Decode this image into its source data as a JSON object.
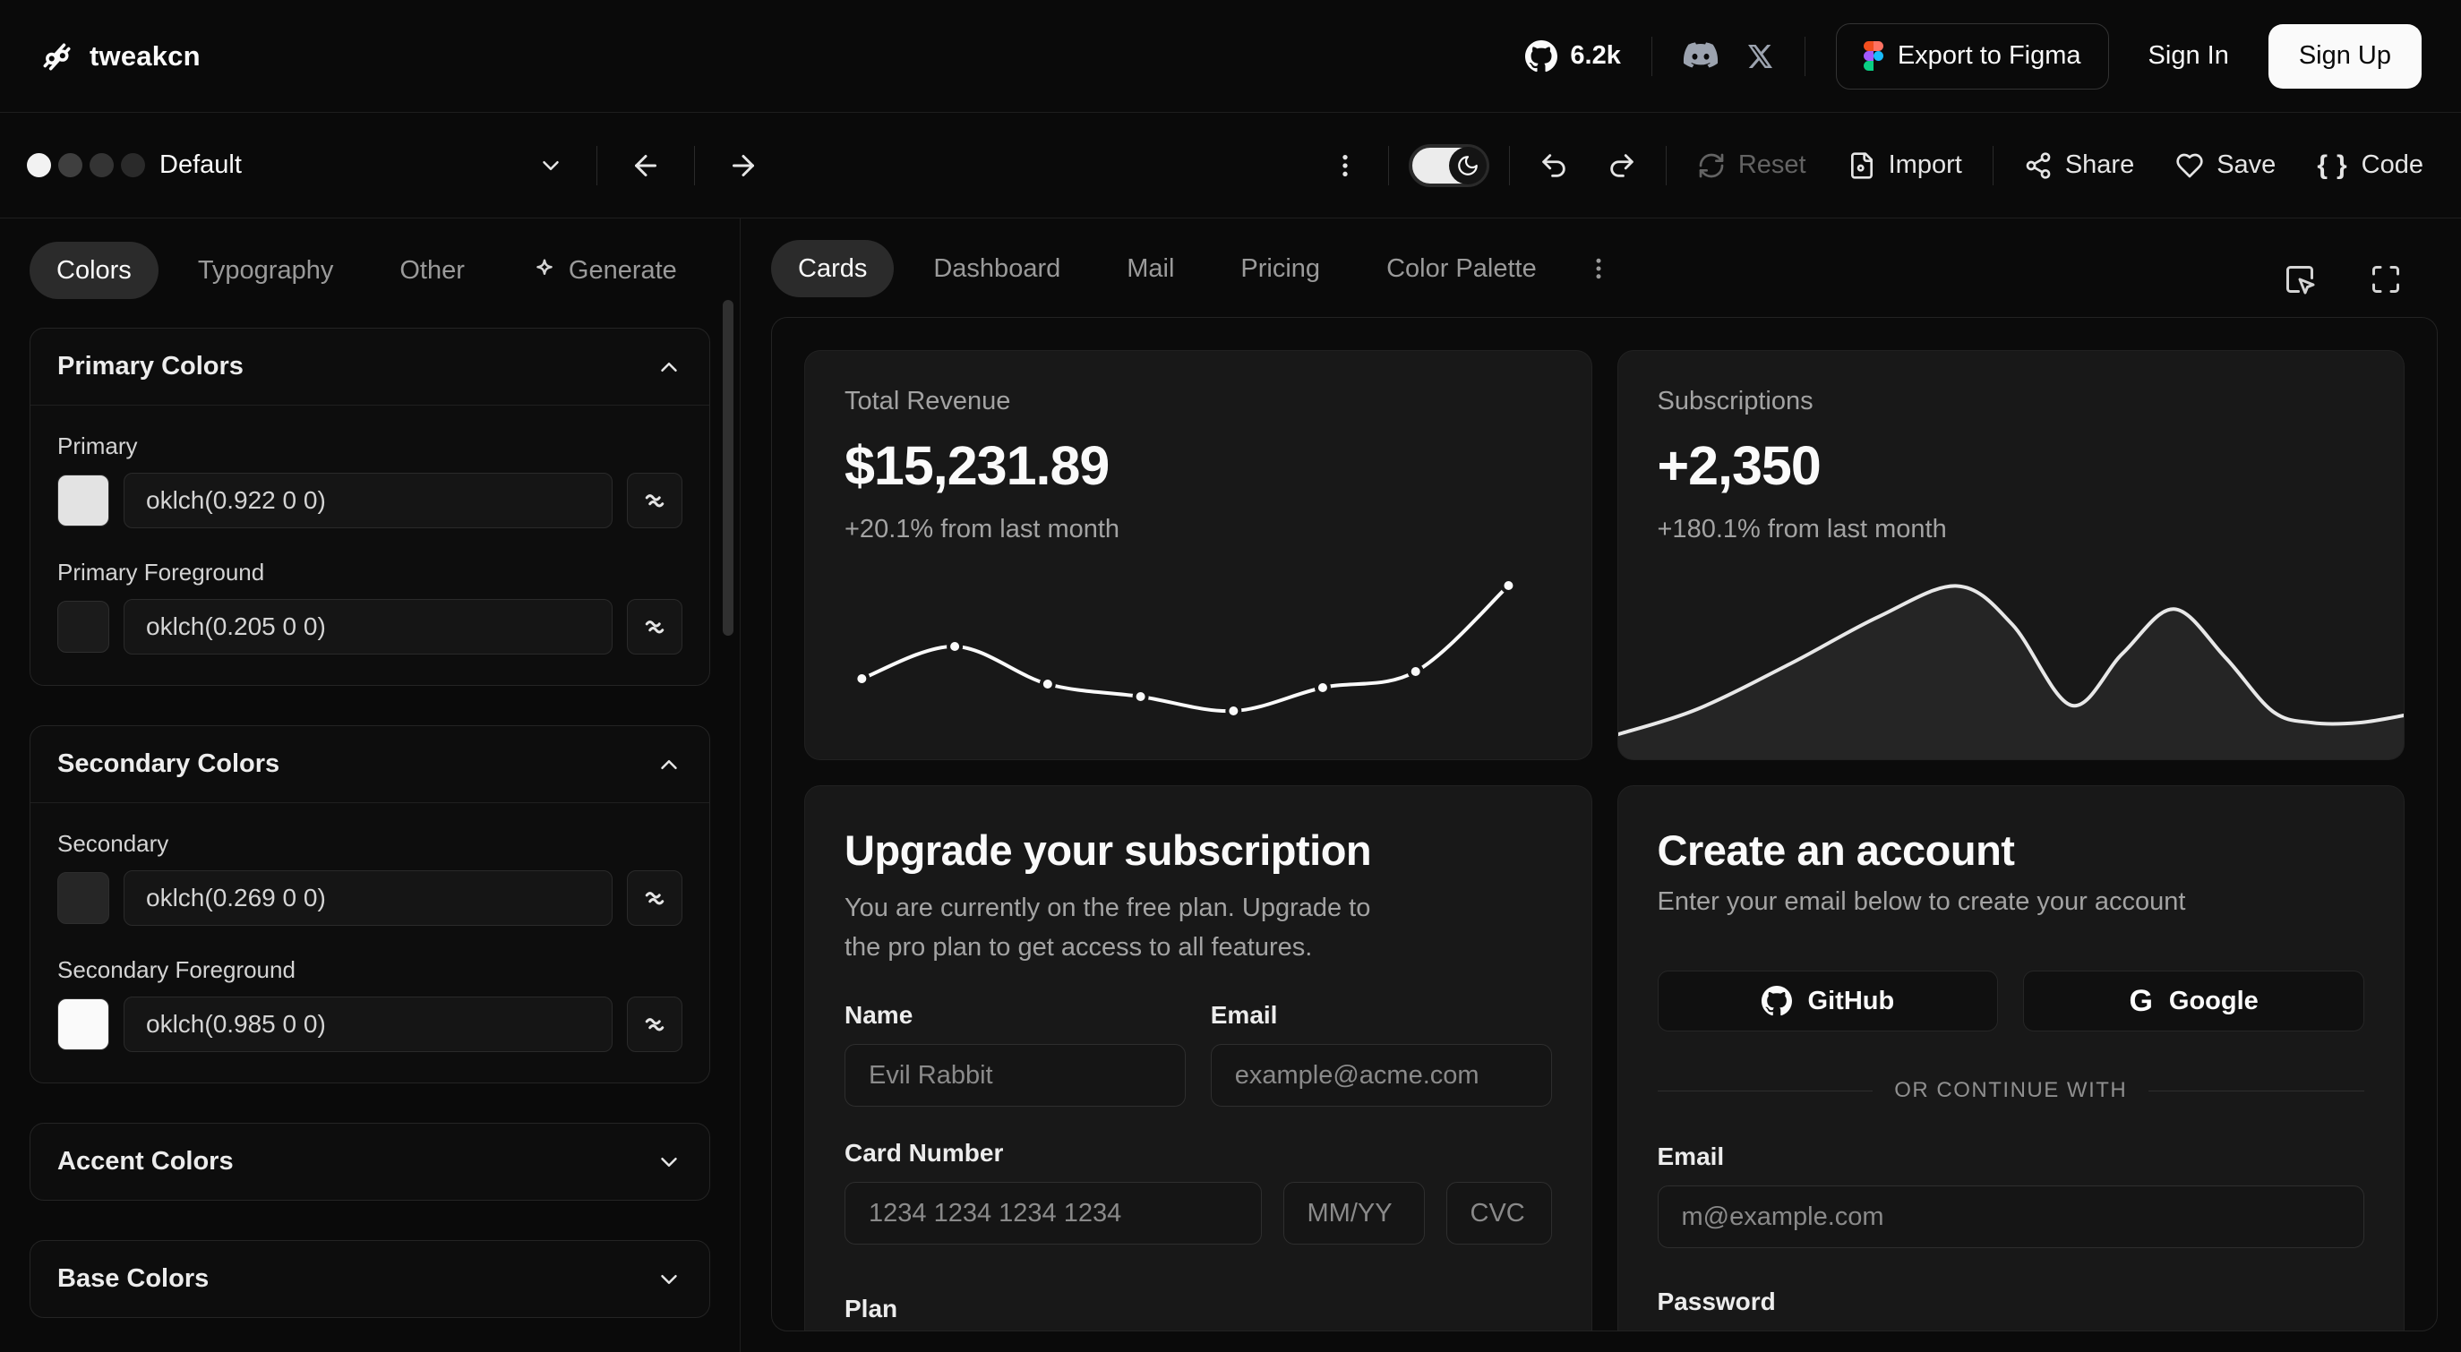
{
  "header": {
    "logo_text": "tweakcn",
    "github_stars": "6.2k",
    "export_figma_label": "Export to Figma",
    "sign_in_label": "Sign In",
    "sign_up_label": "Sign Up"
  },
  "toolbar": {
    "theme_name": "Default",
    "theme_dots": [
      "#f2f2f2",
      "#3f3f3f",
      "#343434",
      "#2a2a2a"
    ],
    "reset_label": "Reset",
    "import_label": "Import",
    "share_label": "Share",
    "save_label": "Save",
    "code_label": "Code"
  },
  "sidebar": {
    "tabs": [
      {
        "label": "Colors",
        "active": true
      },
      {
        "label": "Typography",
        "active": false
      },
      {
        "label": "Other",
        "active": false
      },
      {
        "label": "Generate",
        "active": false
      }
    ],
    "sections": [
      {
        "title": "Primary Colors",
        "expanded": true,
        "fields": [
          {
            "label": "Primary",
            "value": "oklch(0.922 0 0)",
            "swatch": "#e3e3e3"
          },
          {
            "label": "Primary Foreground",
            "value": "oklch(0.205 0 0)",
            "swatch": "#1b1b1b"
          }
        ]
      },
      {
        "title": "Secondary Colors",
        "expanded": true,
        "fields": [
          {
            "label": "Secondary",
            "value": "oklch(0.269 0 0)",
            "swatch": "#262626"
          },
          {
            "label": "Secondary Foreground",
            "value": "oklch(0.985 0 0)",
            "swatch": "#fafafa"
          }
        ]
      },
      {
        "title": "Accent Colors",
        "expanded": false
      },
      {
        "title": "Base Colors",
        "expanded": false
      }
    ]
  },
  "main": {
    "tabs": [
      "Cards",
      "Dashboard",
      "Mail",
      "Pricing",
      "Color Palette"
    ],
    "active_tab": "Cards",
    "cards": {
      "revenue": {
        "title": "Total Revenue",
        "value": "$15,231.89",
        "change": "+20.1% from last month"
      },
      "subscriptions": {
        "title": "Subscriptions",
        "value": "+2,350",
        "change": "+180.1% from last month"
      },
      "upgrade": {
        "title": "Upgrade your subscription",
        "description": "You are currently on the free plan. Upgrade to the pro plan to get access to all features.",
        "name_label": "Name",
        "name_placeholder": "Evil Rabbit",
        "email_label": "Email",
        "email_placeholder": "example@acme.com",
        "card_number_label": "Card Number",
        "card_number_placeholder": "1234 1234 1234 1234",
        "expiry_placeholder": "MM/YY",
        "cvc_placeholder": "CVC",
        "plan_label": "Plan"
      },
      "signup": {
        "title": "Create an account",
        "subtitle": "Enter your email below to create your account",
        "github_label": "GitHub",
        "google_label": "Google",
        "divider_label": "OR CONTINUE WITH",
        "email_label": "Email",
        "email_placeholder": "m@example.com",
        "password_label": "Password"
      }
    }
  },
  "colors": {
    "background": "#0a0a0a",
    "card": "#181818",
    "foreground": "#fafafa",
    "muted": "#a3a3a3",
    "figma_brand": [
      "#f24e1e",
      "#ff7262",
      "#a259ff",
      "#1abcfe",
      "#0acf83"
    ]
  },
  "chart_data": [
    {
      "id": "revenue-trend",
      "type": "line",
      "title": "Total Revenue trend (unlabeled sparkline, values estimated as normalized positions)",
      "points_norm": [
        [
          0.045,
          0.62
        ],
        [
          0.17,
          0.44
        ],
        [
          0.295,
          0.65
        ],
        [
          0.42,
          0.72
        ],
        [
          0.545,
          0.8
        ],
        [
          0.665,
          0.67
        ],
        [
          0.79,
          0.58
        ],
        [
          0.915,
          0.1
        ]
      ],
      "stroke": "#fafafa",
      "dot_fill": "#fafafa",
      "dot_ring": "#181818",
      "axes": false,
      "legend": false
    },
    {
      "id": "subscriptions-trend",
      "type": "area",
      "title": "Subscriptions trend (unlabeled smooth area sparkline, normalized positions)",
      "points_norm": [
        [
          0,
          0.87
        ],
        [
          0.1,
          0.74
        ],
        [
          0.22,
          0.5
        ],
        [
          0.33,
          0.26
        ],
        [
          0.43,
          0.1
        ],
        [
          0.5,
          0.3
        ],
        [
          0.575,
          0.72
        ],
        [
          0.64,
          0.45
        ],
        [
          0.705,
          0.22
        ],
        [
          0.77,
          0.47
        ],
        [
          0.83,
          0.75
        ],
        [
          0.88,
          0.81
        ],
        [
          0.94,
          0.81
        ],
        [
          1,
          0.77
        ]
      ],
      "stroke": "#e8e8e8",
      "fill": "rgba(255,255,255,0.06)",
      "axes": false,
      "legend": false
    }
  ]
}
